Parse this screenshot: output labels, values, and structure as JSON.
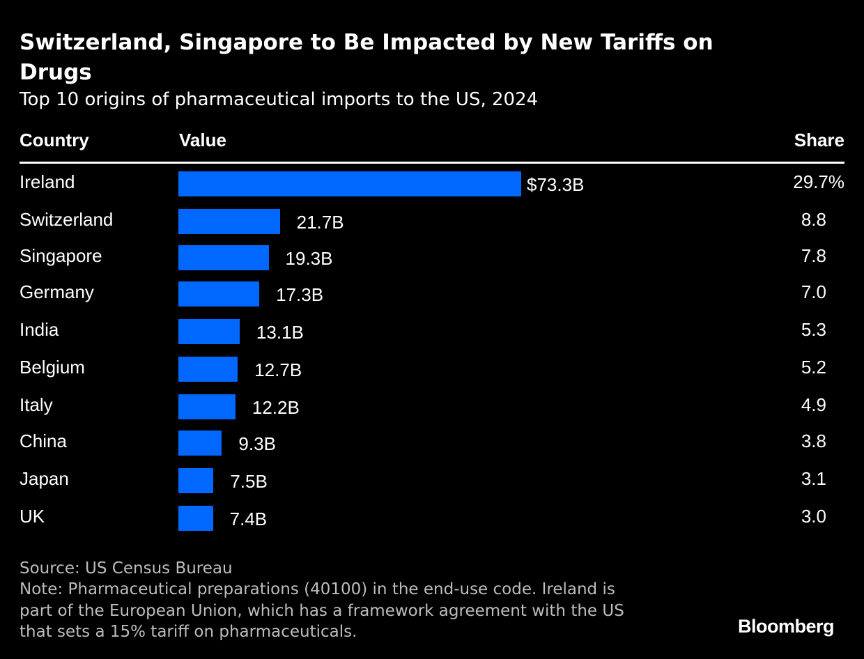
{
  "chart_data": {
    "type": "bar",
    "orientation": "horizontal",
    "title": "Switzerland, Singapore to Be Impacted by New Tariffs on Drugs",
    "subtitle": "Top 10 origins of pharmaceutical imports to the US, 2024",
    "columns": {
      "country": "Country",
      "value": "Value",
      "share": "Share"
    },
    "categories": [
      "Ireland",
      "Switzerland",
      "Singapore",
      "Germany",
      "India",
      "Belgium",
      "Italy",
      "China",
      "Japan",
      "UK"
    ],
    "values": [
      73.3,
      21.7,
      19.3,
      17.3,
      13.1,
      12.7,
      12.2,
      9.3,
      7.5,
      7.4
    ],
    "value_labels": [
      "$73.3B",
      "21.7B",
      "19.3B",
      "17.3B",
      "13.1B",
      "12.7B",
      "12.2B",
      "9.3B",
      "7.5B",
      "7.4B"
    ],
    "shares": [
      "29.7%",
      "8.8",
      "7.8",
      "7.0",
      "5.3",
      "5.2",
      "4.9",
      "3.8",
      "3.1",
      "3.0"
    ],
    "unit": "USD billions",
    "bar_color": "#0068ff",
    "xlim": [
      0,
      73.3
    ]
  },
  "footer": {
    "source": "Source: US Census Bureau",
    "note_lines": [
      "Note: Pharmaceutical preparations (40100) in the end-use code. Ireland is",
      "part of the European Union, which has a framework agreement with the US",
      "that sets a 15% tariff on pharmaceuticals."
    ],
    "logo": "Bloomberg"
  }
}
